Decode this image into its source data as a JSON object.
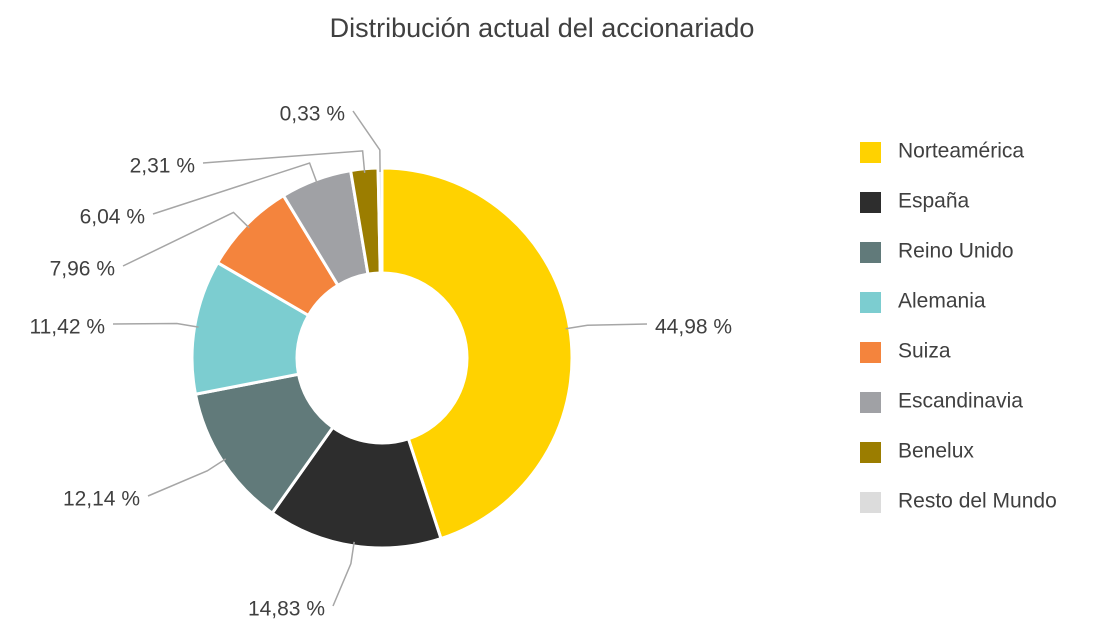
{
  "chart_data": {
    "type": "pie",
    "title": "Distribución actual del accionariado",
    "categories": [
      "Norteamérica",
      "España",
      "Reino Unido",
      "Alemania",
      "Suiza",
      "Escandinavia",
      "Benelux",
      "Resto del Mundo"
    ],
    "values": [
      44.98,
      14.83,
      12.14,
      11.42,
      7.96,
      6.04,
      2.31,
      0.33
    ],
    "value_labels": [
      "44,98 %",
      "14,83 %",
      "12,14 %",
      "11,42 %",
      "7,96 %",
      "6,04 %",
      "2,31 %",
      "0,33 %"
    ],
    "colors": [
      "#ffd200",
      "#2d2d2d",
      "#617a7a",
      "#7ccdd0",
      "#f4843d",
      "#a0a1a5",
      "#9b7d00",
      "#dcdcdc"
    ],
    "donut": true,
    "legend": "right"
  }
}
